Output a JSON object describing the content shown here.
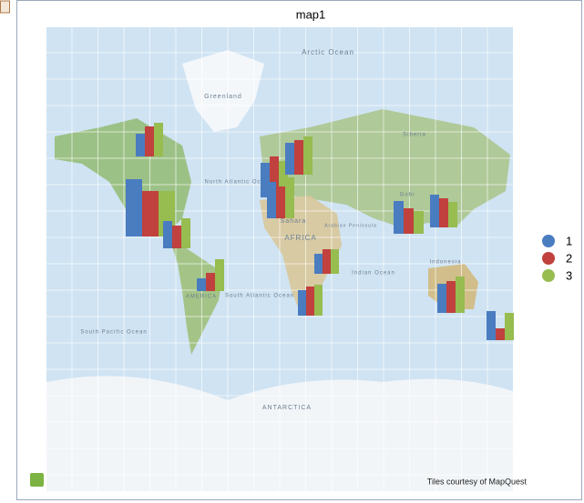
{
  "title": "map1",
  "attribution": "Tiles courtesy of MapQuest",
  "map_labels": [
    "Arctic Ocean",
    "Greenland",
    "North Atlantic Ocean",
    "Sahara",
    "AFRICA",
    "Arabian Peninsula",
    "Siberia",
    "Gobi",
    "Indonesia",
    "AMERICA",
    "South Atlantic Ocean",
    "South Pacific Ocean",
    "Indian Ocean",
    "ANTARCTICA"
  ],
  "series": [
    {
      "name": "1",
      "color": "#4a7cc0"
    },
    {
      "name": "2",
      "color": "#c0413d"
    },
    {
      "name": "3",
      "color": "#97bc50"
    }
  ],
  "groups": [
    {
      "values": [
        25,
        33,
        37
      ]
    },
    {
      "values": [
        63,
        50,
        50
      ]
    },
    {
      "values": [
        30,
        25,
        33
      ]
    },
    {
      "values": [
        14,
        20,
        35
      ]
    },
    {
      "values": [
        38,
        45,
        40
      ]
    },
    {
      "values": [
        40,
        35,
        45
      ]
    },
    {
      "values": [
        35,
        38,
        42
      ]
    },
    {
      "values": [
        22,
        27,
        27
      ]
    },
    {
      "values": [
        28,
        32,
        34
      ]
    },
    {
      "values": [
        36,
        28,
        25
      ]
    },
    {
      "values": [
        36,
        32,
        28
      ]
    },
    {
      "values": [
        32,
        35,
        40
      ]
    },
    {
      "values": [
        32,
        13,
        30
      ]
    }
  ]
}
